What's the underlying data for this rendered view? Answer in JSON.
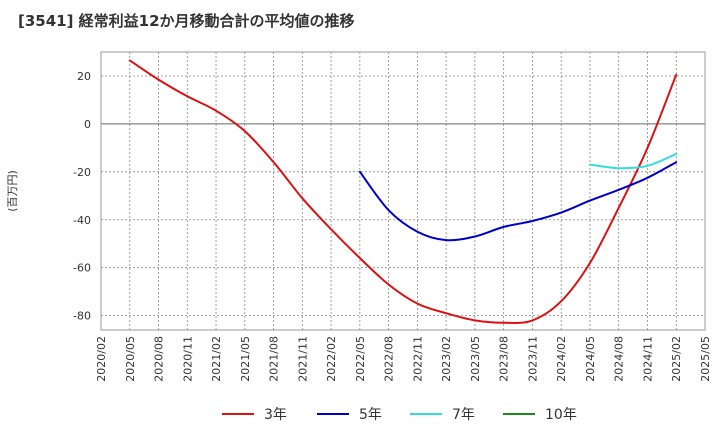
{
  "chart_data": {
    "type": "line",
    "title": "[3541]  経常利益12か月移動合計の平均値の推移",
    "ylabel": "(百万円)",
    "xlabel": "",
    "ylim": [
      -86,
      30
    ],
    "yticks": [
      20,
      0,
      -20,
      -40,
      -60,
      -80
    ],
    "xticks": [
      "2020/02",
      "2020/05",
      "2020/08",
      "2020/11",
      "2021/02",
      "2021/05",
      "2021/08",
      "2021/11",
      "2022/02",
      "2022/05",
      "2022/08",
      "2022/11",
      "2023/02",
      "2023/05",
      "2023/08",
      "2023/11",
      "2024/02",
      "2024/05",
      "2024/08",
      "2024/11",
      "2025/02",
      "2025/05"
    ],
    "grid": true,
    "legend_position": "bottom",
    "series": [
      {
        "name": "3年",
        "color": "#dd1111",
        "points": [
          [
            "2020/05",
            26.5
          ],
          [
            "2020/08",
            18.5
          ],
          [
            "2020/11",
            11.5
          ],
          [
            "2021/02",
            5.5
          ],
          [
            "2021/05",
            -3
          ],
          [
            "2021/08",
            -16
          ],
          [
            "2021/11",
            -31
          ],
          [
            "2022/02",
            -44
          ],
          [
            "2022/05",
            -56
          ],
          [
            "2022/08",
            -67
          ],
          [
            "2022/11",
            -75
          ],
          [
            "2023/02",
            -79
          ],
          [
            "2023/05",
            -82
          ],
          [
            "2023/08",
            -83
          ],
          [
            "2023/11",
            -82
          ],
          [
            "2024/02",
            -74
          ],
          [
            "2024/05",
            -58
          ],
          [
            "2024/08",
            -35
          ],
          [
            "2024/11",
            -10
          ],
          [
            "2025/02",
            20.5
          ]
        ]
      },
      {
        "name": "5年",
        "color": "#0000cc",
        "points": [
          [
            "2022/05",
            -20
          ],
          [
            "2022/08",
            -36
          ],
          [
            "2022/11",
            -45
          ],
          [
            "2023/02",
            -48.5
          ],
          [
            "2023/05",
            -47
          ],
          [
            "2023/08",
            -43
          ],
          [
            "2023/11",
            -40.5
          ],
          [
            "2024/02",
            -37
          ],
          [
            "2024/05",
            -32
          ],
          [
            "2024/08",
            -27.5
          ],
          [
            "2024/11",
            -22.5
          ],
          [
            "2025/02",
            -16
          ]
        ]
      },
      {
        "name": "7年",
        "color": "#33dddd",
        "points": [
          [
            "2024/05",
            -17
          ],
          [
            "2024/08",
            -18.5
          ],
          [
            "2024/11",
            -17.5
          ],
          [
            "2025/02",
            -12.5
          ]
        ]
      },
      {
        "name": "10年",
        "color": "#228822",
        "points": []
      }
    ]
  }
}
